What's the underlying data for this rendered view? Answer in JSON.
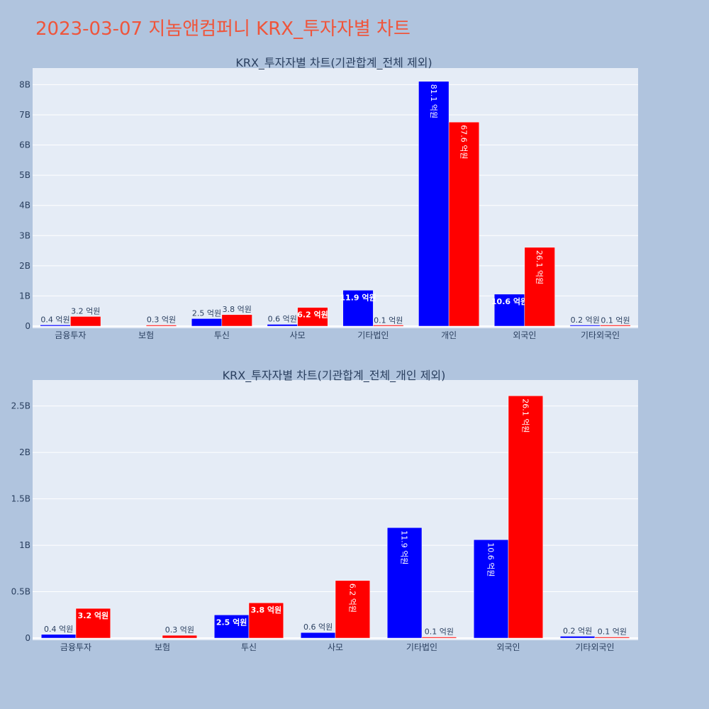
{
  "page": {
    "title": "2023-03-07 지놈앤컴퍼니 KRX_투자자별 차트",
    "background": "#b0c4de",
    "plot_background": "#e5ecf6",
    "title_color": "#ef553b"
  },
  "chart_data": [
    {
      "type": "bar",
      "title": "KRX_투자자별 차트(기관합계_전체 제외)",
      "categories": [
        "금융투자",
        "보험",
        "투신",
        "사모",
        "기타법인",
        "개인",
        "외국인",
        "기타외국인"
      ],
      "series": [
        {
          "color": "#0000ff",
          "values": [
            40000000,
            0,
            250000000,
            60000000,
            1190000000,
            8110000000,
            1060000000,
            20000000
          ],
          "labels": [
            "0.4 억원",
            "",
            "2.5 억원",
            "0.6 억원",
            "11.9 억원",
            "81.1 억원",
            "10.6 억원",
            "0.2 억원"
          ]
        },
        {
          "color": "#ff0000",
          "values": [
            320000000,
            30000000,
            380000000,
            620000000,
            10000000,
            6760000000,
            2610000000,
            10000000
          ],
          "labels": [
            "3.2 억원",
            "0.3 억원",
            "3.8 억원",
            "6.2 억원",
            "0.1 억원",
            "67.6 억원",
            "26.1 억원",
            "0.1 억원"
          ]
        }
      ],
      "yticks": [
        0,
        1000000000,
        2000000000,
        3000000000,
        4000000000,
        5000000000,
        6000000000,
        7000000000,
        8000000000
      ],
      "ytick_labels": [
        "0",
        "1B",
        "2B",
        "3B",
        "4B",
        "5B",
        "6B",
        "7B",
        "8B"
      ],
      "ylim": [
        0,
        8550000000
      ],
      "grid": true,
      "legend": "none"
    },
    {
      "type": "bar",
      "title": "KRX_투자자별 차트(기관합계_전체_개인 제외)",
      "categories": [
        "금융투자",
        "보험",
        "투신",
        "사모",
        "기타법인",
        "외국인",
        "기타외국인"
      ],
      "series": [
        {
          "color": "#0000ff",
          "values": [
            40000000,
            0,
            250000000,
            60000000,
            1190000000,
            1060000000,
            20000000
          ],
          "labels": [
            "0.4 억원",
            "",
            "2.5 억원",
            "0.6 억원",
            "11.9 억원",
            "10.6 억원",
            "0.2 억원"
          ]
        },
        {
          "color": "#ff0000",
          "values": [
            320000000,
            30000000,
            380000000,
            620000000,
            10000000,
            2610000000,
            10000000
          ],
          "labels": [
            "3.2 억원",
            "0.3 억원",
            "3.8 억원",
            "6.2 억원",
            "0.1 억원",
            "26.1 억원",
            "0.1 억원"
          ]
        }
      ],
      "yticks": [
        0,
        500000000,
        1000000000,
        1500000000,
        2000000000,
        2500000000
      ],
      "ytick_labels": [
        "0",
        "0.5B",
        "1B",
        "1.5B",
        "2B",
        "2.5B"
      ],
      "ylim": [
        0,
        2780000000
      ],
      "grid": true,
      "legend": "none"
    }
  ]
}
